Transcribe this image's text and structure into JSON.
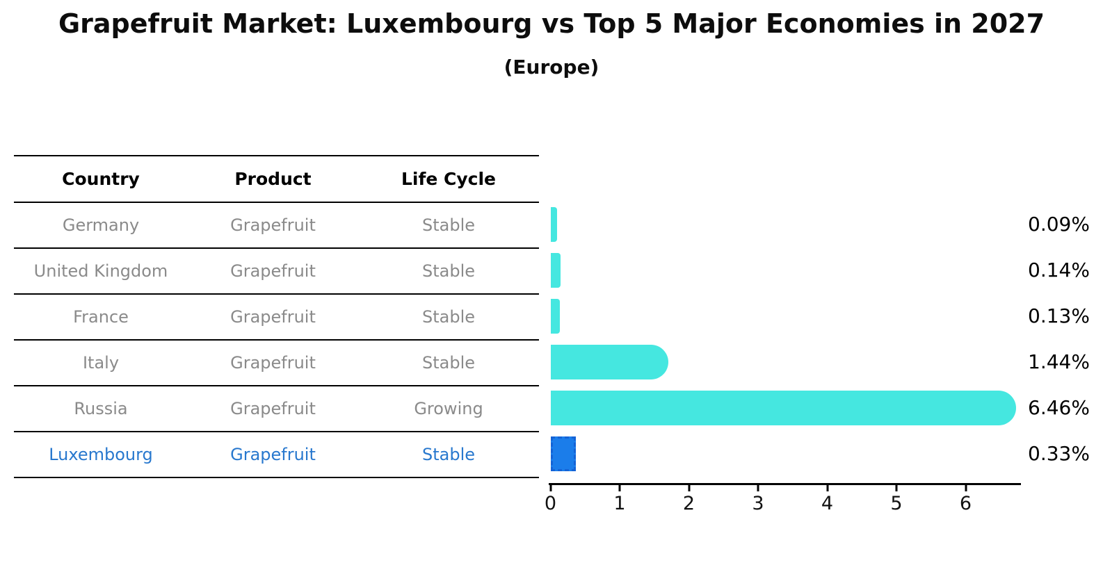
{
  "title": "Grapefruit Market: Luxembourg vs Top 5 Major Economies in 2027",
  "subtitle": "(Europe)",
  "table": {
    "headers": [
      "Country",
      "Product",
      "Life Cycle"
    ],
    "rows": [
      {
        "country": "Germany",
        "product": "Grapefruit",
        "life_cycle": "Stable",
        "highlight": false
      },
      {
        "country": "United Kingdom",
        "product": "Grapefruit",
        "life_cycle": "Stable",
        "highlight": false
      },
      {
        "country": "France",
        "product": "Grapefruit",
        "life_cycle": "Stable",
        "highlight": false
      },
      {
        "country": "Italy",
        "product": "Grapefruit",
        "life_cycle": "Stable",
        "highlight": false
      },
      {
        "country": "Russia",
        "product": "Grapefruit",
        "life_cycle": "Growing",
        "highlight": false
      },
      {
        "country": "Luxembourg",
        "product": "Grapefruit",
        "life_cycle": "Stable",
        "highlight": true
      }
    ]
  },
  "chart_data": {
    "type": "bar",
    "orientation": "horizontal",
    "title": "Grapefruit Market: Luxembourg vs Top 5 Major Economies in 2027",
    "subtitle": "(Europe)",
    "categories": [
      "Germany",
      "United Kingdom",
      "France",
      "Italy",
      "Russia",
      "Luxembourg"
    ],
    "values": [
      0.09,
      0.14,
      0.13,
      1.44,
      6.46,
      0.33
    ],
    "value_labels": [
      "0.09%",
      "0.14%",
      "0.13%",
      "1.44%",
      "6.46%",
      "0.33%"
    ],
    "xticks": [
      "0",
      "1",
      "2",
      "3",
      "4",
      "5",
      "6"
    ],
    "xlim": [
      0,
      6.8
    ],
    "grid": false,
    "legend": "none",
    "bar_color": "#45e7e0",
    "highlight_color": "#1b7dea",
    "highlight_border_color": "#1463d6",
    "highlight_index": 5,
    "highlight_text_color": "#2878ce"
  }
}
